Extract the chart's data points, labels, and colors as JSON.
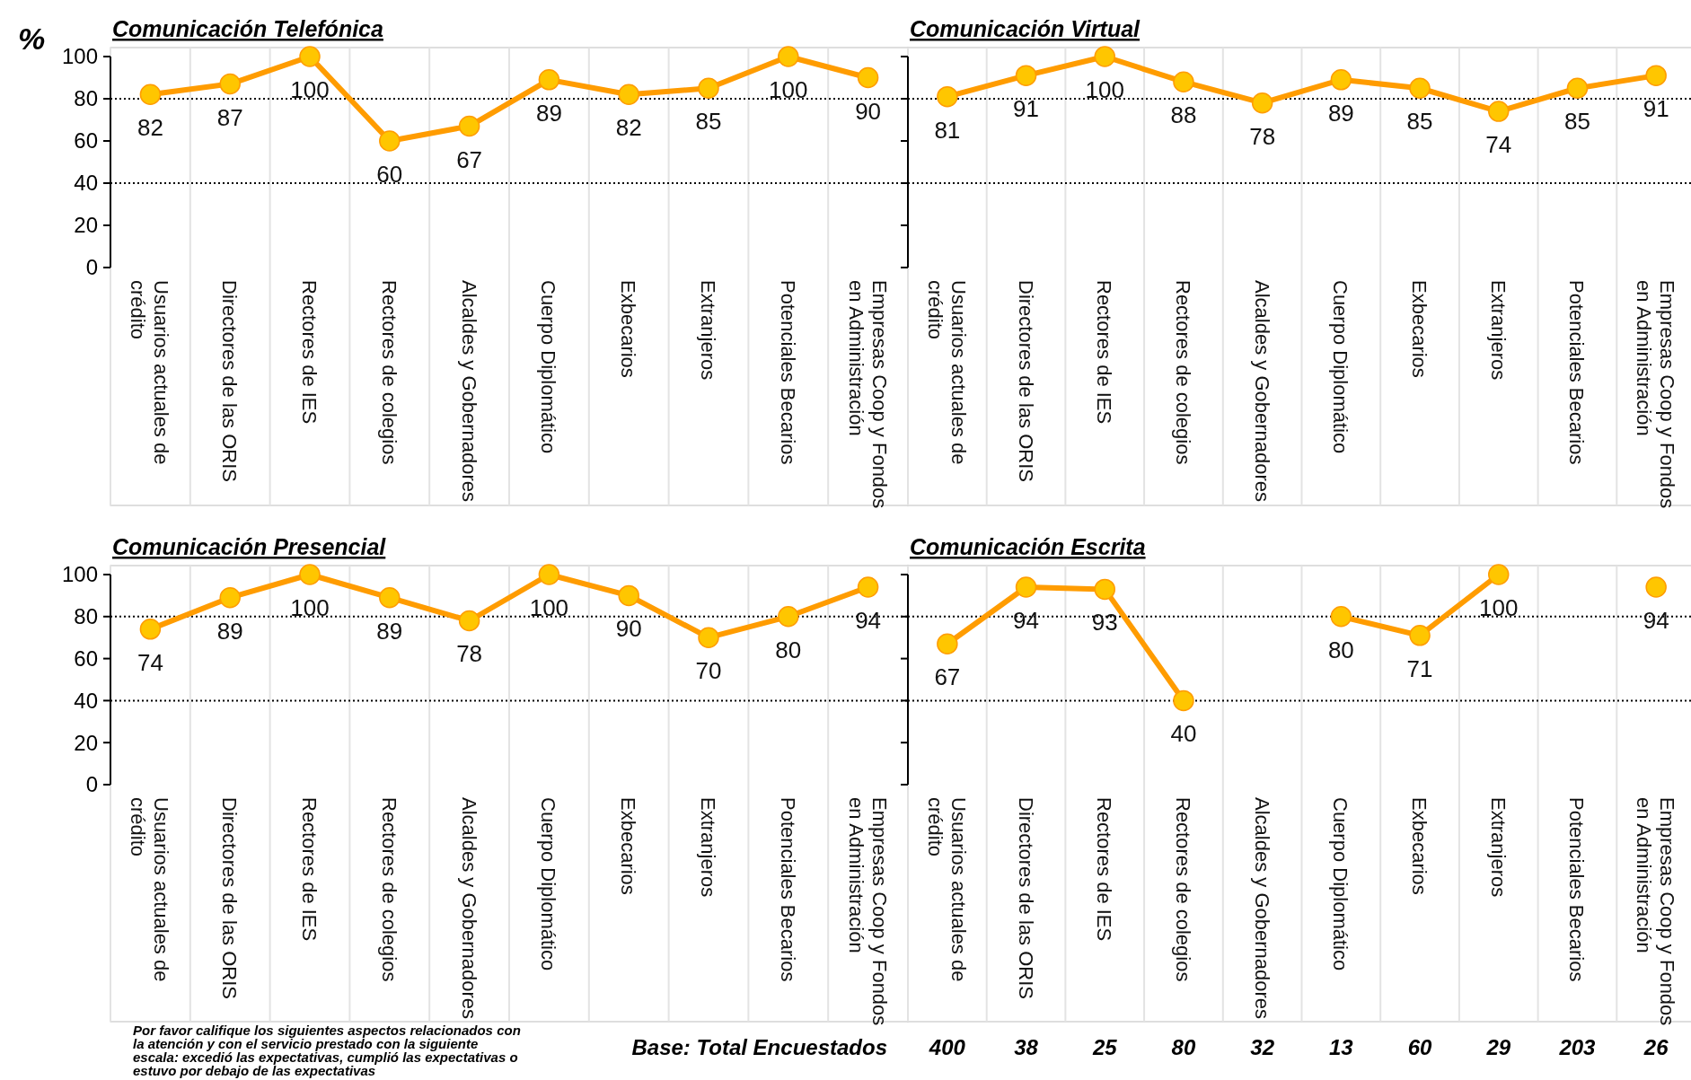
{
  "chart_data": [
    {
      "type": "line",
      "title": "Comunicación Telefónica",
      "ylabel": "%",
      "categories": [
        "Usuarios actuales de crédito",
        "Directores de las ORIS",
        "Rectores de IES",
        "Rectores de colegios",
        "Alcaldes y Gobernadores",
        "Cuerpo Diplomático",
        "Exbecarios",
        "Extranjeros",
        "Potenciales Becarios",
        "Empresas Coop y Fondos en Administración"
      ],
      "series": [
        {
          "color": "#ff9c00",
          "values": [
            82,
            87,
            100,
            60,
            67,
            89,
            82,
            85,
            100,
            90
          ]
        }
      ],
      "ylim": [
        0,
        100
      ],
      "yticks": [
        0,
        20,
        40,
        60,
        80,
        100
      ],
      "ref_lines": [
        {
          "axis": "y",
          "value": 80,
          "line_style": "dotted"
        },
        {
          "axis": "y",
          "value": 40,
          "line_style": "dotted"
        }
      ],
      "data_labels": true,
      "marker": "circle",
      "line_style": "solid"
    },
    {
      "type": "line",
      "title": "Comunicación Virtual",
      "categories": [
        "Usuarios actuales de crédito",
        "Directores de las ORIS",
        "Rectores de IES",
        "Rectores de colegios",
        "Alcaldes y Gobernadores",
        "Cuerpo Diplomático",
        "Exbecarios",
        "Extranjeros",
        "Potenciales Becarios",
        "Empresas Coop y Fondos en Administración"
      ],
      "series": [
        {
          "color": "#ff9c00",
          "values": [
            81,
            91,
            100,
            88,
            78,
            89,
            85,
            74,
            85,
            91
          ]
        }
      ],
      "ylim": [
        0,
        100
      ],
      "yticks": [
        0,
        20,
        40,
        60,
        80,
        100
      ],
      "tick_labels": "x",
      "ref_lines": [
        {
          "axis": "y",
          "value": 80,
          "line_style": "dotted"
        },
        {
          "axis": "y",
          "value": 40,
          "line_style": "dotted"
        }
      ],
      "data_labels": true,
      "marker": "circle",
      "line_style": "solid"
    },
    {
      "type": "line",
      "title": "Comunicación Presencial",
      "categories": [
        "Usuarios actuales de crédito",
        "Directores de las ORIS",
        "Rectores de IES",
        "Rectores de colegios",
        "Alcaldes y Gobernadores",
        "Cuerpo Diplomático",
        "Exbecarios",
        "Extranjeros",
        "Potenciales Becarios",
        "Empresas Coop y Fondos en Administración"
      ],
      "series": [
        {
          "color": "#ff9c00",
          "values": [
            74,
            89,
            100,
            89,
            78,
            100,
            90,
            70,
            80,
            94
          ]
        }
      ],
      "ylim": [
        0,
        100
      ],
      "yticks": [
        0,
        20,
        40,
        60,
        80,
        100
      ],
      "ref_lines": [
        {
          "axis": "y",
          "value": 80,
          "line_style": "dotted"
        },
        {
          "axis": "y",
          "value": 40,
          "line_style": "dotted"
        }
      ],
      "data_labels": true,
      "marker": "circle",
      "line_style": "solid",
      "annotations": [
        "Por favor califique los siguientes aspectos relacionados con la atención y con el servicio prestado con la siguiente escala: excedió las expectativas, cumplió las expectativas o estuvo por debajo de las expectativas"
      ]
    },
    {
      "type": "line",
      "title": "Comunicación Escrita",
      "categories": [
        "Usuarios actuales de crédito",
        "Directores de las ORIS",
        "Rectores de IES",
        "Rectores de colegios",
        "Alcaldes y Gobernadores",
        "Cuerpo Diplomático",
        "Exbecarios",
        "Extranjeros",
        "Potenciales Becarios",
        "Empresas Coop y Fondos en Administración"
      ],
      "series": [
        {
          "color": "#ff9c00",
          "values": [
            67,
            94,
            93,
            40,
            null,
            80,
            71,
            100,
            null,
            94
          ]
        }
      ],
      "ylim": [
        0,
        100
      ],
      "yticks": [
        0,
        20,
        40,
        60,
        80,
        100
      ],
      "tick_labels": "x",
      "ref_lines": [
        {
          "axis": "y",
          "value": 80,
          "line_style": "dotted"
        },
        {
          "axis": "y",
          "value": 40,
          "line_style": "dotted"
        }
      ],
      "data_labels": true,
      "marker": "circle",
      "line_style": "solid",
      "annotations": [
        "Base: Total Encuestados",
        "400",
        "38",
        "25",
        "80",
        "32",
        "13",
        "60",
        "29",
        "203",
        "26"
      ]
    }
  ]
}
